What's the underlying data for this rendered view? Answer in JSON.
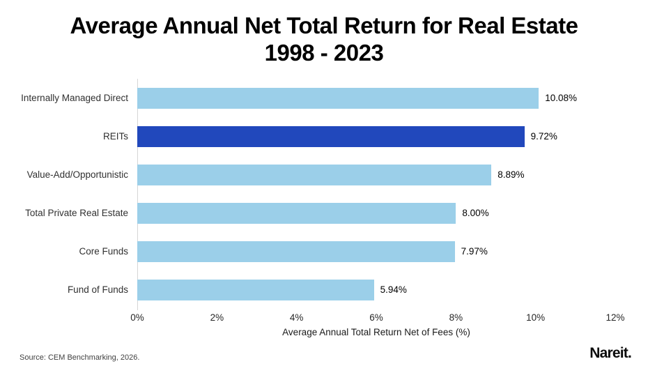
{
  "title": {
    "line1": "Average Annual Net Total Return for Real Estate",
    "line2": "1998 - 2023"
  },
  "chart_data": {
    "type": "bar",
    "orientation": "horizontal",
    "categories": [
      "Internally Managed Direct",
      "REITs",
      "Value-Add/Opportunistic",
      "Total Private Real Estate",
      "Core Funds",
      "Fund of Funds"
    ],
    "values": [
      10.08,
      9.72,
      8.89,
      8.0,
      7.97,
      5.94
    ],
    "value_labels": [
      "10.08%",
      "9.72%",
      "8.89%",
      "8.00%",
      "7.97%",
      "5.94%"
    ],
    "highlight_index": 1,
    "xlabel": "Average Annual Total Return Net of Fees (%)",
    "x_ticks": [
      "0%",
      "2%",
      "4%",
      "6%",
      "8%",
      "10%",
      "12%"
    ],
    "xlim": [
      0,
      12
    ],
    "grid": false,
    "colors": {
      "bar": "#9BCFE9",
      "highlight": "#2148BC",
      "axis_line": "#D6D6D6"
    }
  },
  "footer": {
    "source": "Source: CEM Benchmarking, 2026.",
    "logo": "Nareit."
  }
}
